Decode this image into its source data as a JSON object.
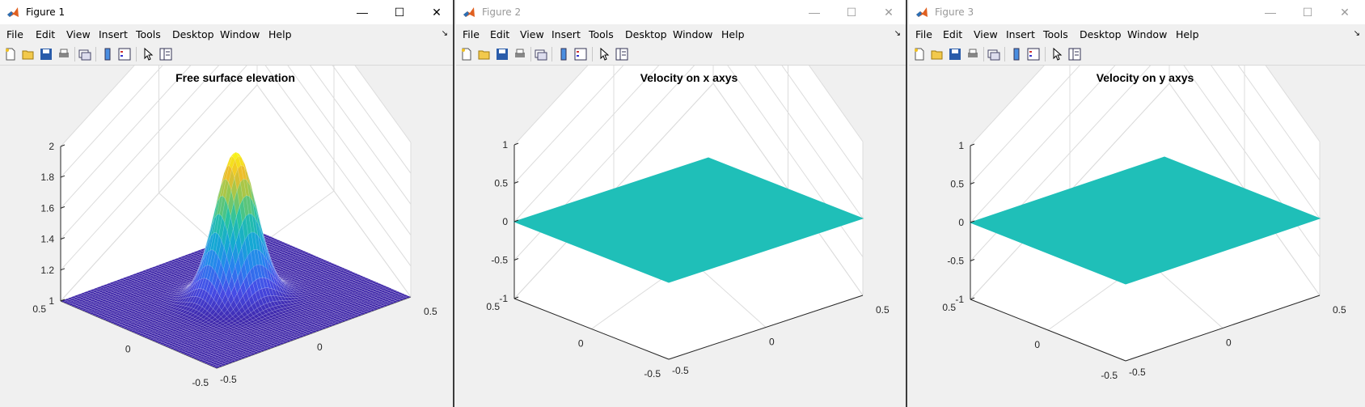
{
  "menu_items": [
    "File",
    "Edit",
    "View",
    "Insert",
    "Tools",
    "Desktop",
    "Window",
    "Help"
  ],
  "window_buttons": {
    "minimize": "—",
    "maximize": "☐",
    "close": "✕"
  },
  "colors": {
    "surface_base": "#3d26a8",
    "flat_surface": "#1fbfb8",
    "title_bg": "#ffffff"
  },
  "windows": [
    {
      "title": "Figure 1",
      "active": true,
      "plot": {
        "title": "Free surface elevation",
        "zticks": [
          "1",
          "1.2",
          "1.4",
          "1.6",
          "1.8",
          "2"
        ],
        "x_left_ticks": [
          "0.5",
          "0",
          "-0.5"
        ],
        "y_right_ticks": [
          "-0.5",
          "0",
          "0.5"
        ]
      }
    },
    {
      "title": "Figure 2",
      "active": false,
      "plot": {
        "title": "Velocity on x axys",
        "zticks": [
          "-1",
          "-0.5",
          "0",
          "0.5",
          "1"
        ],
        "x_left_ticks": [
          "0.5",
          "0",
          "-0.5"
        ],
        "y_right_ticks": [
          "-0.5",
          "0",
          "0.5"
        ]
      }
    },
    {
      "title": "Figure 3",
      "active": false,
      "plot": {
        "title": "Velocity on y axys",
        "zticks": [
          "-1",
          "-0.5",
          "0",
          "0.5",
          "1"
        ],
        "x_left_ticks": [
          "0.5",
          "0",
          "-0.5"
        ],
        "y_right_ticks": [
          "-0.5",
          "0",
          "0.5"
        ]
      }
    }
  ],
  "chart_data": [
    {
      "type": "surface",
      "title": "Free surface elevation",
      "zlim": [
        1,
        2
      ],
      "xlim": [
        -0.5,
        0.5
      ],
      "ylim": [
        -0.5,
        0.5
      ],
      "peak": {
        "x": 0,
        "y": 0,
        "z": 1.95
      },
      "base": 1,
      "colormap": "parula",
      "grid": true
    },
    {
      "type": "surface",
      "title": "Velocity on x axys",
      "zlim": [
        -1,
        1
      ],
      "xlim": [
        -0.5,
        0.5
      ],
      "ylim": [
        -0.5,
        0.5
      ],
      "value": 0,
      "grid": true
    },
    {
      "type": "surface",
      "title": "Velocity on y axys",
      "zlim": [
        -1,
        1
      ],
      "xlim": [
        -0.5,
        0.5
      ],
      "ylim": [
        -0.5,
        0.5
      ],
      "value": 0,
      "grid": true
    }
  ]
}
